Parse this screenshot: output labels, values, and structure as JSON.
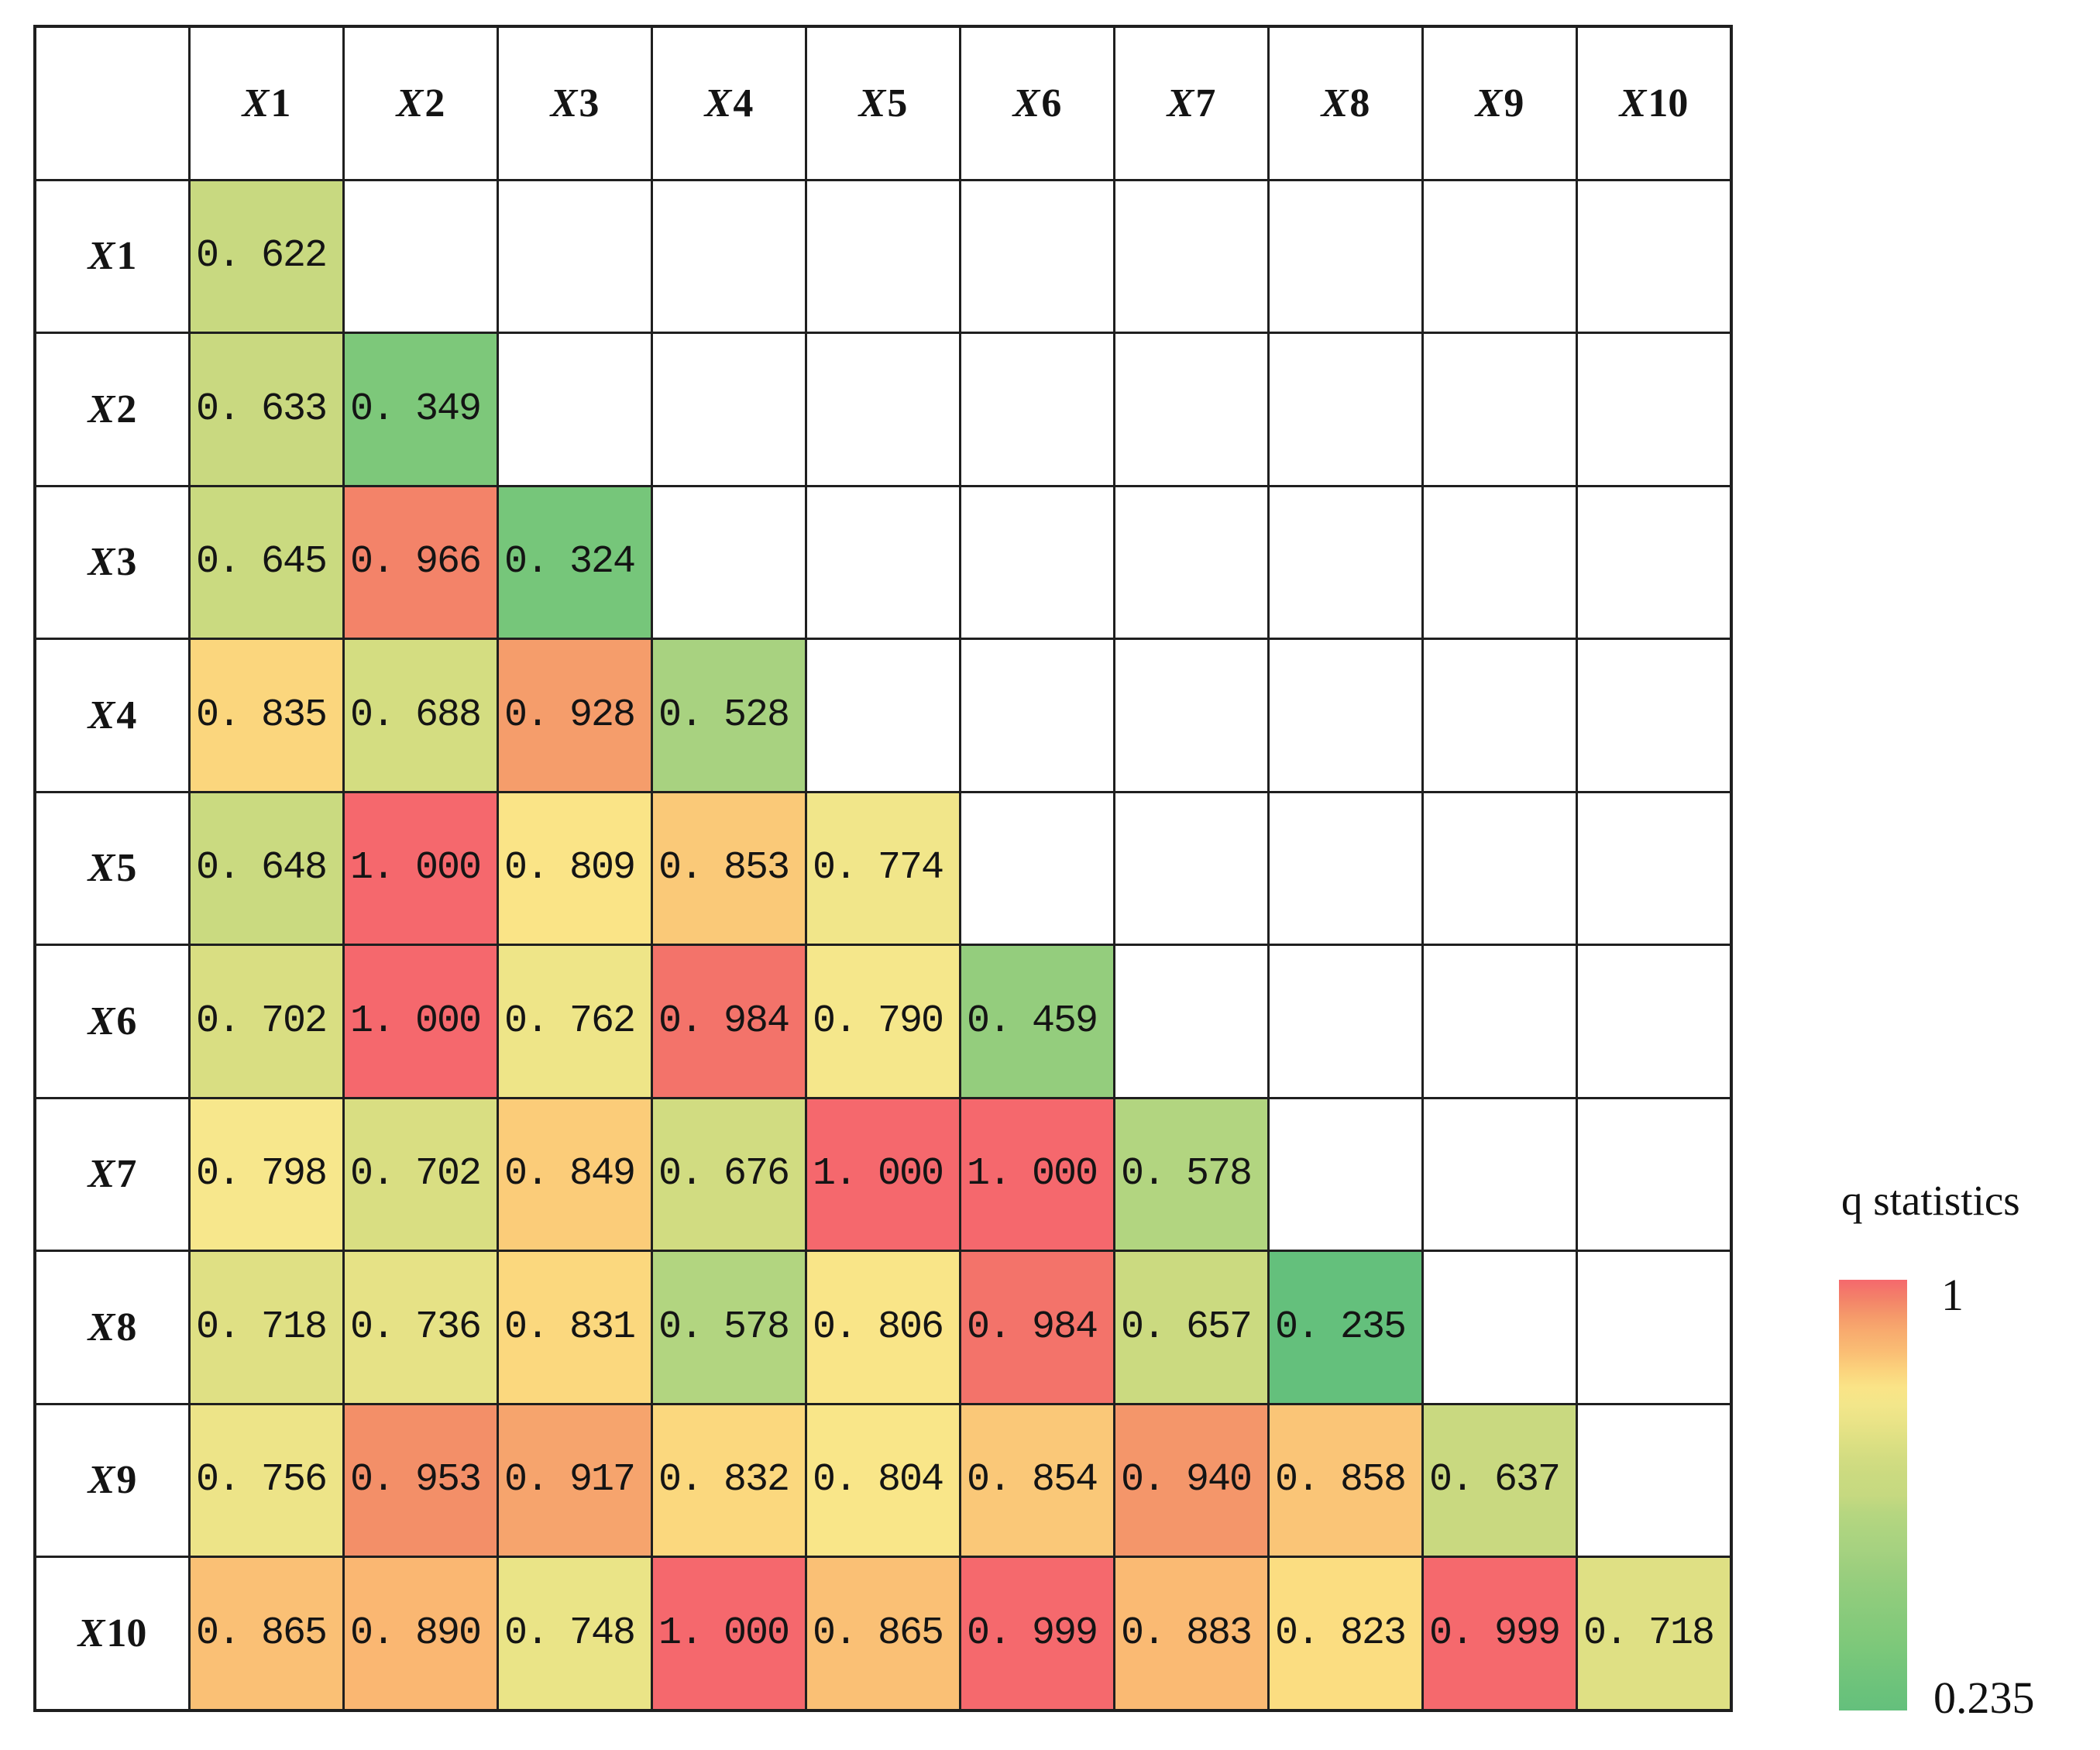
{
  "figure": {
    "background": "#ffffff",
    "grid_line_color": "#1f1f1f",
    "empty_cell_color": "#ffffff",
    "text_color": "#141414"
  },
  "chart_data": {
    "type": "heatmap",
    "title": "",
    "categories": [
      "X1",
      "X2",
      "X3",
      "X4",
      "X5",
      "X6",
      "X7",
      "X8",
      "X9",
      "X10"
    ],
    "matrix_lower_triangle": [
      [
        0.622
      ],
      [
        0.633,
        0.349
      ],
      [
        0.645,
        0.966,
        0.324
      ],
      [
        0.835,
        0.688,
        0.928,
        0.528
      ],
      [
        0.648,
        1.0,
        0.809,
        0.853,
        0.774
      ],
      [
        0.702,
        1.0,
        0.762,
        0.984,
        0.79,
        0.459
      ],
      [
        0.798,
        0.702,
        0.849,
        0.676,
        1.0,
        1.0,
        0.578
      ],
      [
        0.718,
        0.736,
        0.831,
        0.578,
        0.806,
        0.984,
        0.657,
        0.235
      ],
      [
        0.756,
        0.953,
        0.917,
        0.832,
        0.804,
        0.854,
        0.94,
        0.858,
        0.637
      ],
      [
        0.865,
        0.89,
        0.748,
        1.0,
        0.865,
        0.999,
        0.883,
        0.823,
        0.999,
        0.718
      ]
    ],
    "value_range": [
      0.235,
      1
    ],
    "legend": {
      "title": "q statistics",
      "max_label": "1",
      "min_label": "0.235",
      "max": 1,
      "min": 0.235,
      "position": "right",
      "orientation": "vertical"
    },
    "colormap_stops": [
      {
        "v": 0.235,
        "rgb": [
          100,
          192,
          124
        ]
      },
      {
        "v": 0.324,
        "rgb": [
          118,
          198,
          122
        ]
      },
      {
        "v": 0.349,
        "rgb": [
          125,
          200,
          122
        ]
      },
      {
        "v": 0.459,
        "rgb": [
          148,
          205,
          125
        ]
      },
      {
        "v": 0.528,
        "rgb": [
          168,
          210,
          128
        ]
      },
      {
        "v": 0.578,
        "rgb": [
          178,
          213,
          128
        ]
      },
      {
        "v": 0.622,
        "rgb": [
          200,
          217,
          128
        ]
      },
      {
        "v": 0.657,
        "rgb": [
          203,
          218,
          128
        ]
      },
      {
        "v": 0.7,
        "rgb": [
          216,
          222,
          130
        ]
      },
      {
        "v": 0.75,
        "rgb": [
          235,
          228,
          135
        ]
      },
      {
        "v": 0.798,
        "rgb": [
          247,
          231,
          140
        ]
      },
      {
        "v": 0.81,
        "rgb": [
          250,
          228,
          134
        ]
      },
      {
        "v": 0.835,
        "rgb": [
          251,
          214,
          125
        ]
      },
      {
        "v": 0.865,
        "rgb": [
          250,
          192,
          117
        ]
      },
      {
        "v": 0.89,
        "rgb": [
          250,
          183,
          114
        ]
      },
      {
        "v": 0.92,
        "rgb": [
          246,
          162,
          108
        ]
      },
      {
        "v": 0.953,
        "rgb": [
          243,
          143,
          104
        ]
      },
      {
        "v": 0.984,
        "rgb": [
          243,
          115,
          106
        ]
      },
      {
        "v": 1.0,
        "rgb": [
          245,
          104,
          109
        ]
      }
    ]
  }
}
